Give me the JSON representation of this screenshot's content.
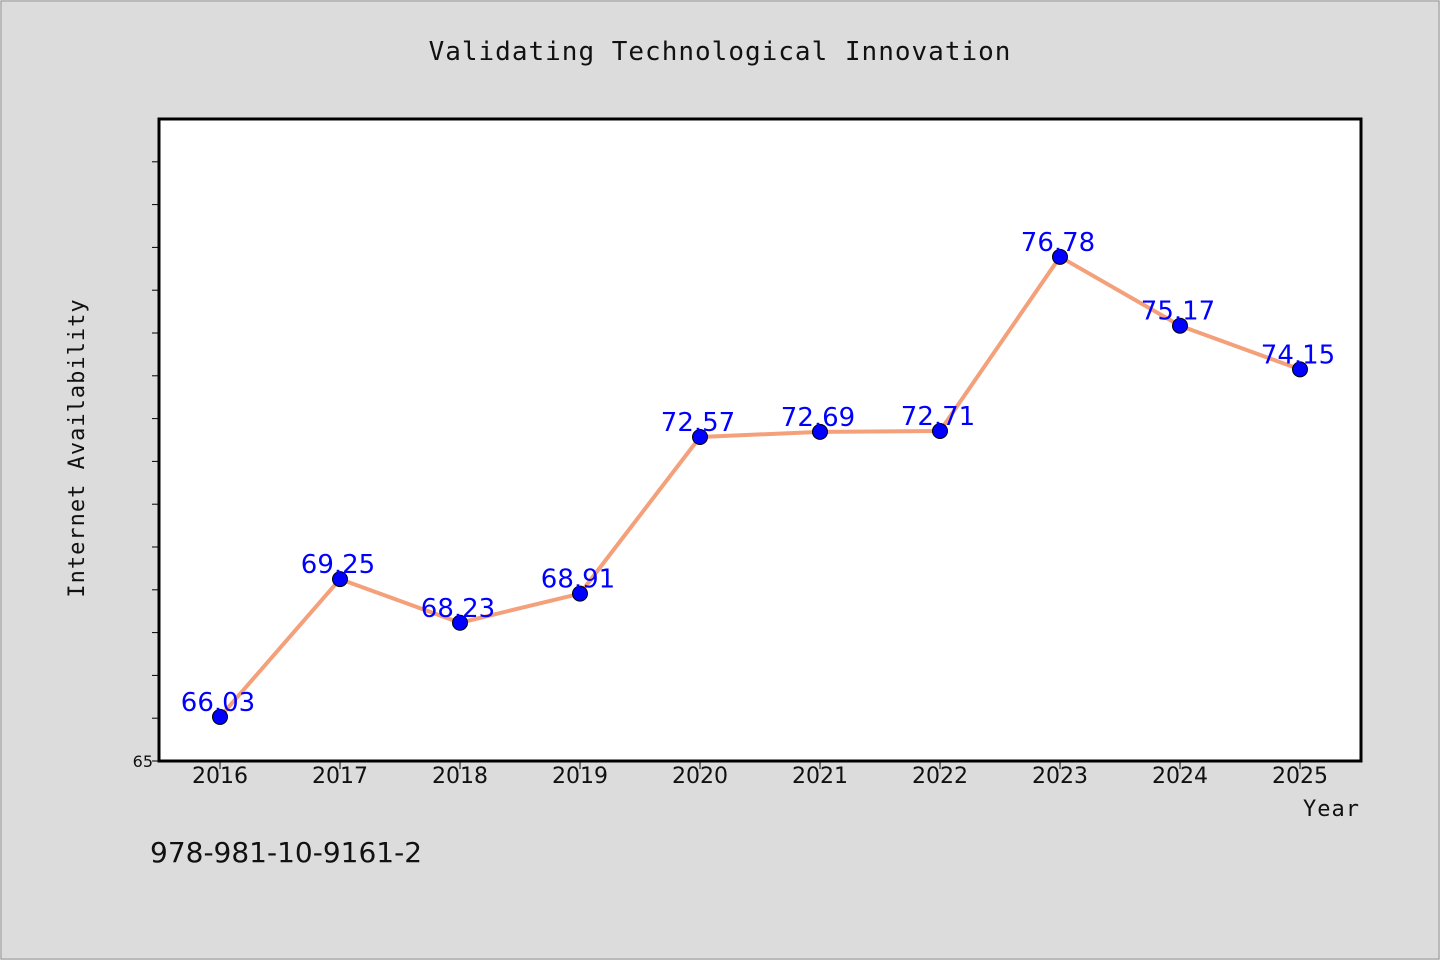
{
  "chart_data": {
    "type": "line",
    "title": "Validating Technological Innovation",
    "xlabel": "Year",
    "ylabel": "Internet Availability",
    "x": [
      "2016",
      "2017",
      "2018",
      "2019",
      "2020",
      "2021",
      "2022",
      "2023",
      "2024",
      "2025"
    ],
    "series": [
      {
        "values": [
          66.03,
          69.25,
          68.23,
          68.91,
          72.57,
          72.69,
          72.71,
          76.78,
          75.17,
          74.15
        ],
        "labels": [
          "66.03",
          "69.25",
          "68.23",
          "68.91",
          "72.57",
          "72.69",
          "72.71",
          "76.78",
          "75.17",
          "74.15"
        ],
        "line_color": "#f4a07a",
        "marker_color": "#0000ff"
      }
    ],
    "ylim": [
      65,
      80
    ],
    "y_tick_labels": [
      "65"
    ],
    "y_minor_ticks": [
      65,
      66,
      67,
      68,
      69,
      70,
      71,
      72,
      73,
      74,
      75,
      76,
      77,
      78,
      79,
      80
    ],
    "grid": false,
    "label_color": "#0000ff"
  },
  "footer_text": "978-981-10-9161-2",
  "colors": {
    "background": "#dcdcdc",
    "plot_background": "#ffffff"
  }
}
